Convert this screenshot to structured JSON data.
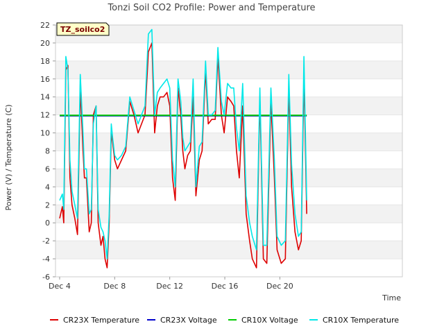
{
  "chart_data": {
    "type": "line",
    "title": "Tonzi Soil CO2 Profile: Power and Temperature",
    "tag": "TZ_soilco2",
    "xlabel": "Time",
    "ylabel": "Power (V) / Temperature (C)",
    "x_unit": "days since Dec 4",
    "xlim": [
      -0.3,
      24.9
    ],
    "ylim": [
      -6,
      22
    ],
    "yticks": [
      -6,
      -4,
      -2,
      0,
      2,
      4,
      6,
      8,
      10,
      12,
      14,
      16,
      18,
      20,
      22
    ],
    "xticks": [
      {
        "x": 0,
        "label": "Dec 4"
      },
      {
        "x": 4,
        "label": "Dec 8"
      },
      {
        "x": 8,
        "label": "Dec 12"
      },
      {
        "x": 12,
        "label": "Dec 16"
      },
      {
        "x": 16,
        "label": "Dec 20"
      }
    ],
    "grid": "horizontal alternating bands",
    "legend_position": "bottom",
    "series": [
      {
        "name": "CR23X Temperature",
        "color": "#dd0000",
        "x": [
          0.0,
          0.2,
          0.3,
          0.45,
          0.6,
          0.75,
          0.9,
          1.1,
          1.3,
          1.5,
          1.7,
          1.8,
          1.95,
          2.15,
          2.3,
          2.45,
          2.65,
          2.8,
          3.0,
          3.15,
          3.3,
          3.45,
          3.6,
          3.75,
          3.85,
          4.0,
          4.2,
          4.5,
          4.8,
          5.1,
          5.4,
          5.7,
          5.95,
          6.2,
          6.45,
          6.7,
          6.9,
          7.1,
          7.3,
          7.55,
          7.8,
          8.0,
          8.2,
          8.4,
          8.6,
          8.8,
          8.95,
          9.1,
          9.3,
          9.5,
          9.7,
          9.9,
          10.15,
          10.35,
          10.6,
          10.8,
          11.05,
          11.3,
          11.5,
          11.75,
          11.95,
          12.2,
          12.45,
          12.65,
          12.85,
          13.05,
          13.3,
          13.55,
          13.8,
          14.0,
          14.3,
          14.55,
          14.8,
          15.05,
          15.35,
          15.6,
          15.8,
          16.1,
          16.4,
          16.65,
          16.85,
          17.1,
          17.35,
          17.55,
          17.75,
          17.95
        ],
        "y": [
          0.5,
          1.8,
          0.0,
          17.0,
          17.5,
          5.0,
          2.0,
          0.5,
          -1.3,
          15.0,
          8.0,
          5.0,
          5.0,
          -1.0,
          0.0,
          12.0,
          13.0,
          0.0,
          -2.5,
          -1.5,
          -4.0,
          -5.0,
          0.0,
          10.0,
          9.0,
          7.0,
          6.0,
          7.0,
          8.0,
          13.5,
          12.0,
          10.0,
          11.0,
          12.0,
          19.0,
          20.0,
          10.0,
          13.0,
          14.0,
          14.0,
          14.5,
          13.0,
          5.0,
          2.5,
          15.0,
          12.0,
          8.0,
          6.0,
          7.5,
          8.0,
          14.0,
          3.0,
          7.0,
          8.0,
          17.0,
          11.0,
          11.5,
          11.5,
          18.5,
          12.0,
          10.0,
          14.0,
          13.5,
          13.0,
          8.0,
          5.0,
          13.0,
          1.0,
          -2.0,
          -4.0,
          -5.0,
          14.0,
          -4.0,
          -4.5,
          13.5,
          5.0,
          -3.0,
          -4.5,
          -4.0,
          15.0,
          4.0,
          -1.0,
          -3.0,
          -2.0,
          16.5,
          1.0
        ],
        "dashed": false
      },
      {
        "name": "CR23X Voltage",
        "color": "#0000cc",
        "x": [
          0.0,
          17.95
        ],
        "y": [
          11.9,
          11.9
        ],
        "dashed": false
      },
      {
        "name": "CR10X Voltage",
        "color": "#00cc00",
        "x": [
          0.0,
          17.95
        ],
        "y": [
          11.95,
          11.95
        ],
        "dashed": false
      },
      {
        "name": "CR10X Temperature",
        "color": "#00e8e8",
        "x": [
          0.0,
          0.2,
          0.3,
          0.45,
          0.6,
          0.75,
          0.9,
          1.1,
          1.3,
          1.5,
          1.7,
          1.8,
          1.95,
          2.15,
          2.3,
          2.45,
          2.65,
          2.8,
          3.0,
          3.15,
          3.3,
          3.45,
          3.6,
          3.75,
          3.85,
          4.0,
          4.2,
          4.5,
          4.8,
          5.1,
          5.4,
          5.7,
          5.95,
          6.2,
          6.45,
          6.7,
          6.9,
          7.1,
          7.3,
          7.55,
          7.8,
          8.0,
          8.2,
          8.4,
          8.6,
          8.8,
          8.95,
          9.1,
          9.3,
          9.5,
          9.7,
          9.9,
          10.15,
          10.35,
          10.6,
          10.8,
          11.05,
          11.3,
          11.5,
          11.75,
          11.95,
          12.2,
          12.45,
          12.65,
          12.85,
          13.05,
          13.3,
          13.55,
          13.8,
          14.0,
          14.3,
          14.55,
          14.8,
          15.05,
          15.35,
          15.6,
          15.8,
          16.1,
          16.4,
          16.65,
          16.85,
          17.1,
          17.35,
          17.55,
          17.75,
          17.95
        ],
        "y": [
          2.5,
          3.2,
          1.5,
          18.5,
          17.0,
          7.0,
          3.5,
          2.0,
          0.5,
          16.5,
          10.0,
          6.0,
          6.0,
          1.0,
          1.5,
          11.0,
          13.0,
          1.5,
          -0.5,
          -1.0,
          -2.0,
          -4.0,
          1.0,
          11.0,
          9.5,
          7.5,
          7.0,
          7.5,
          8.5,
          14.0,
          12.5,
          11.0,
          12.0,
          13.0,
          21.0,
          21.5,
          12.0,
          14.5,
          15.0,
          15.5,
          16.0,
          15.0,
          7.0,
          4.0,
          16.0,
          13.5,
          9.5,
          8.0,
          8.5,
          9.0,
          16.0,
          4.0,
          8.5,
          9.0,
          18.0,
          12.0,
          12.0,
          12.5,
          19.5,
          13.5,
          12.0,
          15.5,
          15.0,
          15.0,
          10.5,
          8.0,
          15.5,
          3.0,
          0.0,
          -1.5,
          -3.0,
          15.0,
          -2.5,
          -2.5,
          15.0,
          7.0,
          -1.5,
          -2.5,
          -2.0,
          16.5,
          6.5,
          1.0,
          -1.5,
          -1.0,
          18.5,
          2.5
        ],
        "dashed": false
      }
    ]
  },
  "colors": {
    "band_light": "#f2f2f2",
    "band_white": "#ffffff",
    "tag_fill": "#ffffc8"
  }
}
